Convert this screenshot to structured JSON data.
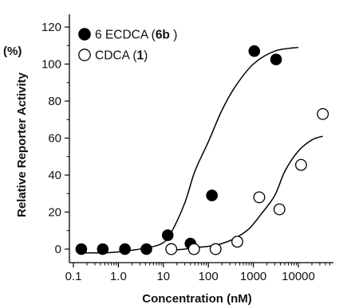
{
  "chart_data": {
    "type": "scatter",
    "xscale": "log",
    "xlim": [
      0.1,
      50000
    ],
    "ylim": [
      -5,
      125
    ],
    "xlabel": "Concentration (nM)",
    "ylabel": "Relative  Reporter Activity",
    "unit_label": "(%)",
    "xticks": [
      {
        "value": 0.1,
        "label": "0.1"
      },
      {
        "value": 1,
        "label": "1.0"
      },
      {
        "value": 10,
        "label": "10"
      },
      {
        "value": 100,
        "label": "100"
      },
      {
        "value": 1000,
        "label": "1000"
      },
      {
        "value": 10000,
        "label": "10000"
      }
    ],
    "yticks": [
      {
        "value": 0,
        "label": "0"
      },
      {
        "value": 20,
        "label": "20"
      },
      {
        "value": 40,
        "label": "40"
      },
      {
        "value": 60,
        "label": "60"
      },
      {
        "value": 80,
        "label": "80"
      },
      {
        "value": 100,
        "label": "100"
      },
      {
        "value": 120,
        "label": "120"
      }
    ],
    "legend_position": "top-left",
    "series": [
      {
        "legend": {
          "prefix": "6 ECDCA (",
          "bold": "6b",
          "suffix": " )"
        },
        "marker": "filled-circle",
        "color": "#000000",
        "points": [
          [
            0.15,
            0
          ],
          [
            0.45,
            0
          ],
          [
            1.4,
            0
          ],
          [
            4.2,
            0
          ],
          [
            12.5,
            7.5
          ],
          [
            40,
            3
          ],
          [
            120,
            29
          ],
          [
            1050,
            107
          ],
          [
            3200,
            102.5
          ]
        ],
        "fit": [
          [
            0.15,
            -2
          ],
          [
            0.5,
            -2
          ],
          [
            1.5,
            -1
          ],
          [
            5,
            1
          ],
          [
            10,
            3.5
          ],
          [
            15,
            9
          ],
          [
            30,
            25
          ],
          [
            50,
            42
          ],
          [
            100,
            58
          ],
          [
            200,
            75
          ],
          [
            400,
            88
          ],
          [
            1000,
            100
          ],
          [
            3000,
            107
          ],
          [
            10000,
            109
          ]
        ]
      },
      {
        "legend": {
          "prefix": "CDCA (",
          "bold": "1",
          "suffix": ")"
        },
        "marker": "open-circle",
        "color": "#000000",
        "points": [
          [
            15,
            0
          ],
          [
            48,
            0
          ],
          [
            145,
            0
          ],
          [
            440,
            4
          ],
          [
            1350,
            28
          ],
          [
            3800,
            21.5
          ],
          [
            11500,
            45.5
          ],
          [
            35000,
            73
          ]
        ],
        "fit": [
          [
            15,
            -0.5
          ],
          [
            30,
            0
          ],
          [
            60,
            1
          ],
          [
            100,
            1.5
          ],
          [
            200,
            3
          ],
          [
            400,
            6
          ],
          [
            800,
            11
          ],
          [
            1500,
            19
          ],
          [
            3000,
            29
          ],
          [
            5000,
            42
          ],
          [
            10000,
            53
          ],
          [
            20000,
            59
          ],
          [
            35000,
            61
          ]
        ]
      }
    ]
  }
}
